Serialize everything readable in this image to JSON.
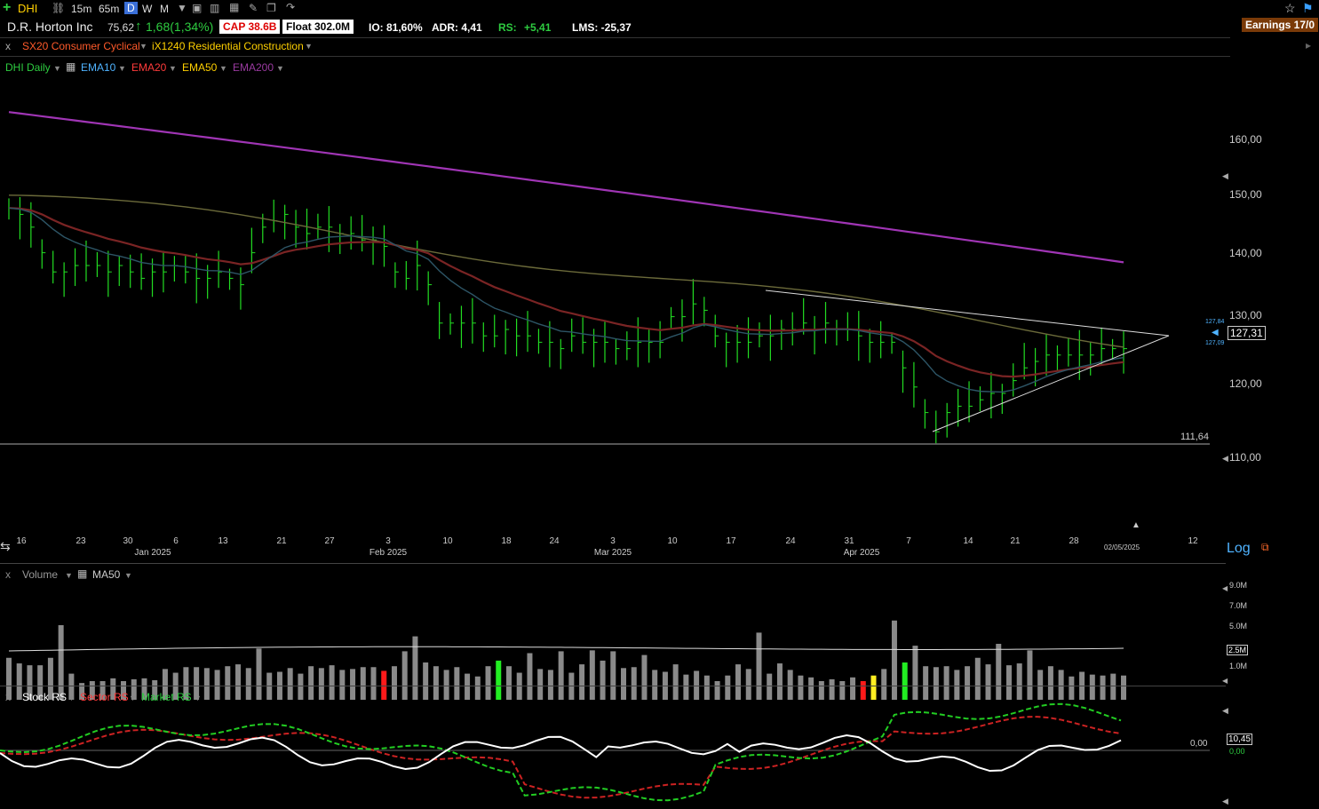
{
  "toolbar": {
    "symbol": "DHI",
    "timeframes": [
      "15m",
      "65m",
      "D",
      "W",
      "M"
    ],
    "active_timeframe": "D",
    "earnings": "Earnings 17/0"
  },
  "info": {
    "company": "D.R. Horton Inc",
    "price": "75,62",
    "change": "1,68(1,34%)",
    "cap": "CAP 38.6B",
    "float": "Float 302.0M",
    "io": "IO: 81,60%",
    "adr": "ADR: 4,41",
    "rs_label": "RS:",
    "rs_value": "+5,41",
    "lms": "LMS: -25,37"
  },
  "sector": {
    "close": "x",
    "sector_name": "SX20 Consumer Cyclical",
    "industry_name": "iX1240 Residential Construction"
  },
  "price_panel": {
    "study_label": "DHI Daily",
    "ema10": "EMA10",
    "ema20": "EMA20",
    "ema50": "EMA50",
    "ema200": "EMA200",
    "y_ticks": [
      "160,00",
      "150,00",
      "140,00",
      "130,00",
      "120,00",
      "110,00"
    ],
    "support_label": "111,64",
    "last_price": "127,31",
    "small_upper": "127,84",
    "small_lower": "127,09",
    "x_days": [
      "16",
      "23",
      "30",
      "6",
      "13",
      "21",
      "27",
      "3",
      "10",
      "18",
      "24",
      "3",
      "10",
      "17",
      "24",
      "31",
      "7",
      "14",
      "21",
      "28",
      "12"
    ],
    "x_months": [
      "Jan 2025",
      "Feb 2025",
      "Mar 2025",
      "Apr 2025"
    ],
    "x_date_label": "02/05/2025",
    "log_label": "Log",
    "colors": {
      "ema10": "#4fb3ff",
      "ema20": "#ff3b3b",
      "ema50": "#ffd000",
      "ema200": "#b040c0",
      "bars": "#22dd22"
    }
  },
  "volume_panel": {
    "close": "x",
    "label": "Volume",
    "ma_label": "MA50",
    "y_ticks": [
      "9.0M",
      "7.0M",
      "5.0M",
      "1.0M"
    ],
    "current": "2.5M"
  },
  "rs_panel": {
    "close": "x",
    "stock_rs": "Stock RS",
    "sector_rs": "Sector RS",
    "market_rs": "Market RS",
    "zero_label": "0,00",
    "value_box": "10,45",
    "value_small": "0,00"
  }
}
